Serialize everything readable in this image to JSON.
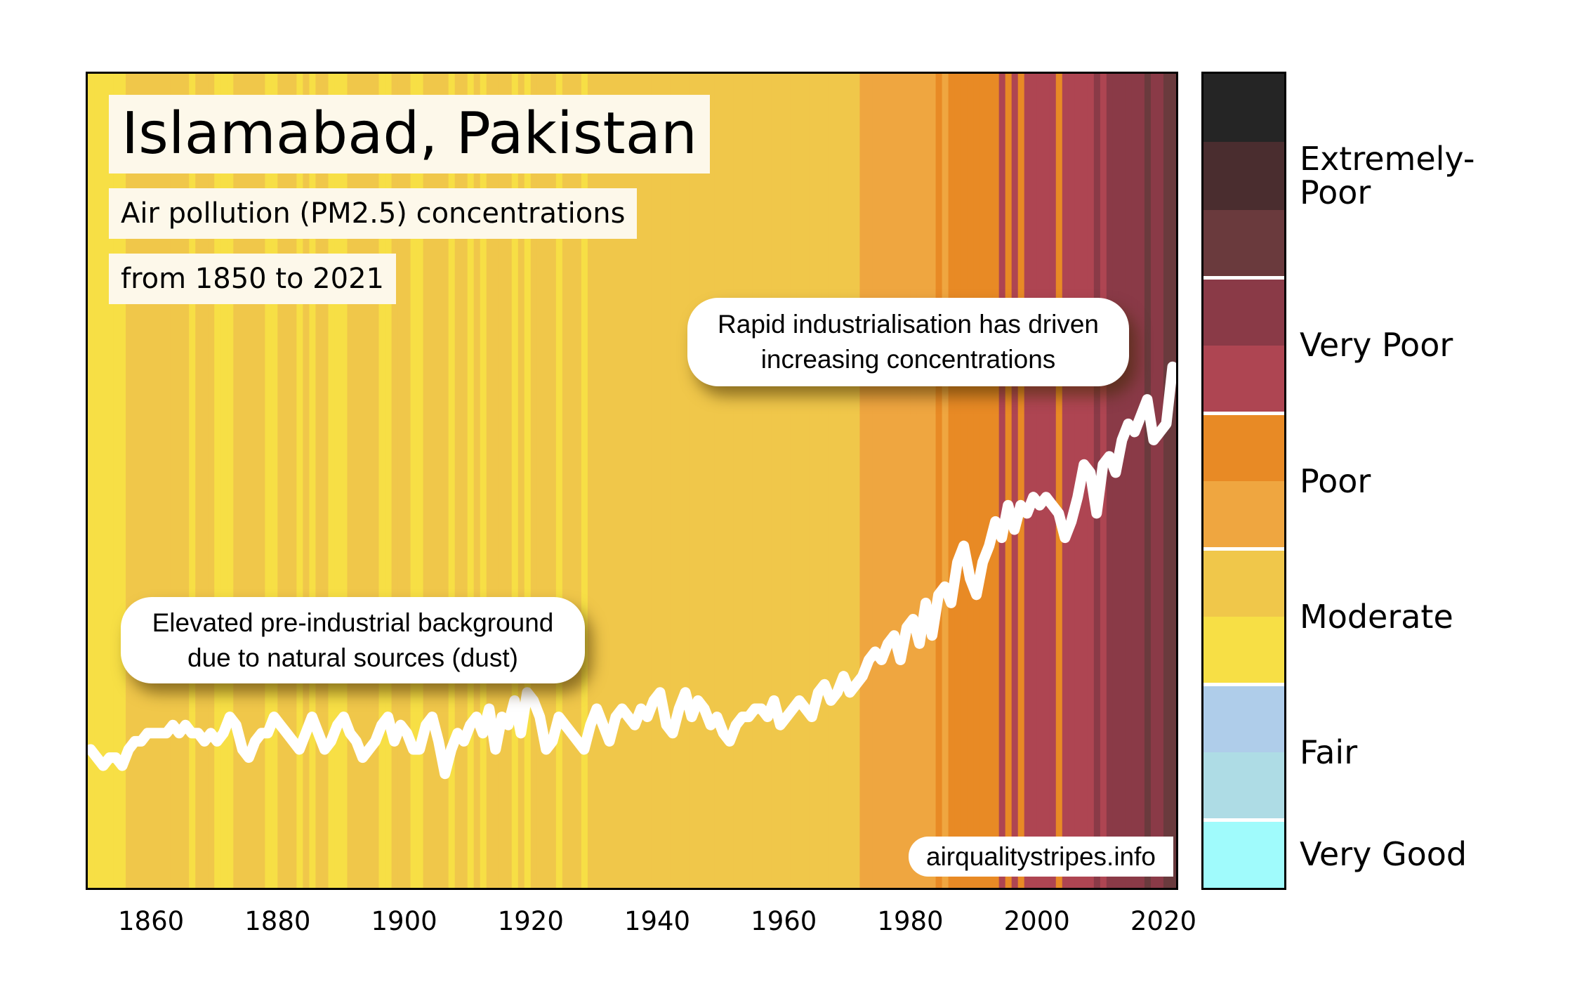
{
  "header": {
    "title": "Islamabad, Pakistan",
    "subtitle": "Air pollution (PM2.5) concentrations",
    "period": "from 1850 to 2021"
  },
  "annotations": {
    "pre_industrial": [
      "Elevated pre-industrial background",
      "due to natural sources (dust)"
    ],
    "industrial": [
      "Rapid industrialisation has driven",
      "increasing concentrations"
    ]
  },
  "watermark": "airqualitystripes.info",
  "chart_data": {
    "type": "stripes",
    "title": "Islamabad, Pakistan",
    "x_start": 1850,
    "x_end": 2021,
    "xlim": [
      1850,
      2022
    ],
    "x_ticks": [
      "1860",
      "1880",
      "1900",
      "1920",
      "1940",
      "1960",
      "1980",
      "2000",
      "2020"
    ],
    "grid": false,
    "legend_placement": "right",
    "level_colors": [
      "#a0fbfc",
      "#aedce5",
      "#afcdea",
      "#f7df45",
      "#f0c74a",
      "#efa640",
      "#e88a25",
      "#ae4552",
      "#8a3a47",
      "#6a3a3d",
      "#4a2d2f",
      "#252525"
    ],
    "legend": [
      {
        "label": "Very Good",
        "levels": [
          0
        ]
      },
      {
        "label": "Fair",
        "levels": [
          1,
          2
        ]
      },
      {
        "label": "Moderate",
        "levels": [
          3,
          4
        ]
      },
      {
        "label": "Poor",
        "levels": [
          5,
          6
        ]
      },
      {
        "label": "Very Poor",
        "levels": [
          7,
          8
        ]
      },
      {
        "label": "Extremely-\nPoor",
        "levels": [
          9,
          10,
          11
        ]
      }
    ],
    "stripe_levels": [
      3,
      3,
      3,
      3,
      3,
      3,
      4,
      4,
      4,
      4,
      4,
      4,
      4,
      4,
      4,
      4,
      3,
      4,
      4,
      4,
      3,
      3,
      3,
      4,
      4,
      4,
      4,
      4,
      3,
      3,
      4,
      4,
      4,
      3,
      4,
      3,
      4,
      4,
      3,
      3,
      3,
      4,
      4,
      4,
      4,
      4,
      3,
      3,
      4,
      4,
      4,
      3,
      3,
      4,
      4,
      4,
      4,
      3,
      4,
      4,
      3,
      4,
      3,
      4,
      4,
      4,
      4,
      3,
      4,
      3,
      4,
      4,
      4,
      4,
      3,
      4,
      4,
      4,
      3,
      4,
      4,
      4,
      4,
      4,
      4,
      4,
      4,
      4,
      4,
      4,
      4,
      4,
      4,
      4,
      4,
      4,
      4,
      4,
      4,
      4,
      4,
      4,
      4,
      4,
      4,
      4,
      4,
      4,
      4,
      4,
      4,
      4,
      4,
      4,
      4,
      4,
      4,
      4,
      4,
      4,
      4,
      4,
      5,
      5,
      5,
      5,
      5,
      5,
      5,
      5,
      5,
      5,
      5,
      5,
      6,
      5,
      6,
      6,
      6,
      6,
      6,
      6,
      6,
      6,
      7,
      6,
      7,
      6,
      7,
      7,
      7,
      7,
      7,
      6,
      7,
      7,
      7,
      7,
      7,
      8,
      7,
      8,
      8,
      8,
      8,
      8,
      8,
      9,
      8,
      8,
      9,
      9
    ],
    "line_color": "#ffffff",
    "line_ylim": [
      0,
      100
    ],
    "line_values": [
      17,
      16,
      15,
      16,
      16,
      15,
      17,
      18,
      18,
      19,
      19,
      19,
      19,
      20,
      19,
      20,
      19,
      19,
      18,
      19,
      18,
      19,
      21,
      20,
      17,
      16,
      18,
      19,
      19,
      21,
      20,
      19,
      18,
      17,
      19,
      21,
      19,
      17,
      18,
      20,
      21,
      19,
      18,
      16,
      17,
      18,
      20,
      21,
      18,
      20,
      19,
      17,
      17,
      20,
      21,
      18,
      14,
      17,
      19,
      18,
      20,
      21,
      19,
      22,
      17,
      21,
      20,
      23,
      19,
      24,
      23,
      21,
      17,
      18,
      21,
      20,
      19,
      18,
      17,
      20,
      22,
      20,
      18,
      21,
      22,
      21,
      20,
      22,
      21,
      23,
      24,
      20,
      19,
      22,
      24,
      21,
      23,
      22,
      20,
      21,
      19,
      18,
      20,
      21,
      21,
      22,
      22,
      21,
      23,
      20,
      21,
      22,
      23,
      22,
      21,
      24,
      25,
      23,
      24,
      26,
      24,
      25,
      26,
      28,
      29,
      28,
      30,
      31,
      28,
      32,
      33,
      30,
      35,
      31,
      36,
      37,
      35,
      40,
      42,
      38,
      36,
      40,
      42,
      45,
      43,
      47,
      44,
      47,
      46,
      48,
      47,
      48,
      47,
      46,
      43,
      45,
      48,
      52,
      51,
      46,
      52,
      53,
      51,
      55,
      57,
      56,
      58,
      60,
      55,
      56,
      57,
      64
    ]
  }
}
